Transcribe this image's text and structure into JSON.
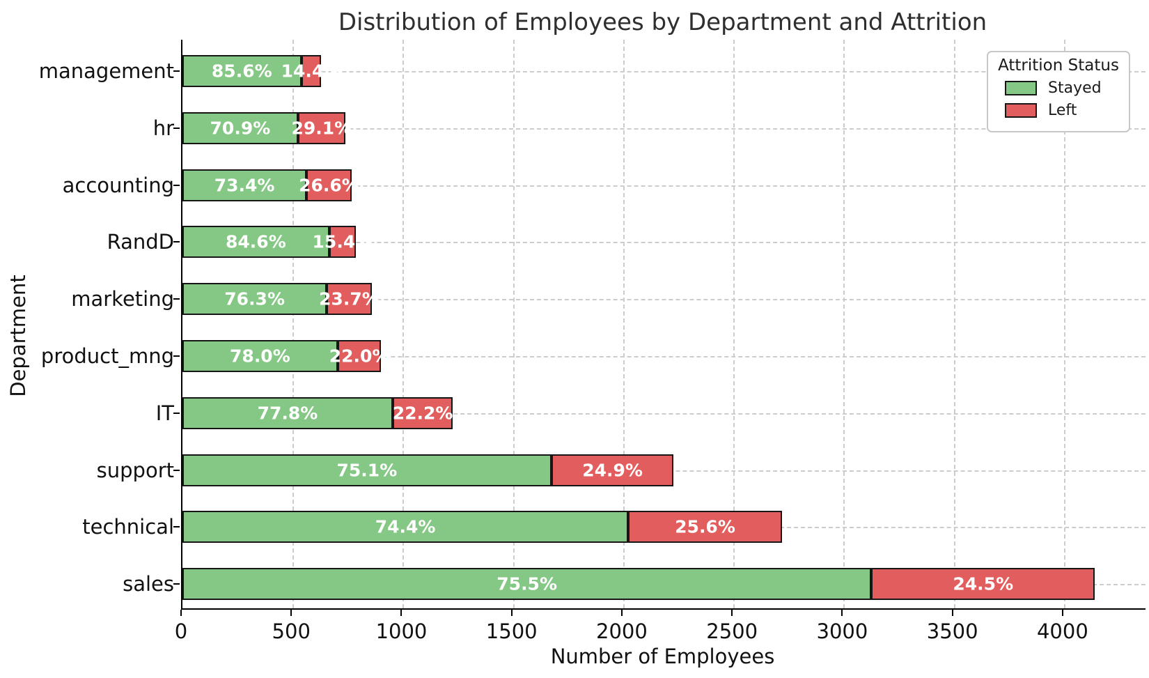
{
  "title": "Distribution of Employees by Department and Attrition",
  "xlabel": "Number of Employees",
  "ylabel": "Department",
  "legend": {
    "title": "Attrition Status",
    "items": [
      {
        "label": "Stayed",
        "color": "#85c785"
      },
      {
        "label": "Left",
        "color": "#e25d5d"
      }
    ]
  },
  "colors": {
    "stayed": "#85c785",
    "left": "#e25d5d",
    "bar_edge": "#161616",
    "grid": "#cccccc",
    "text": "#111111"
  },
  "chart_data": {
    "type": "bar",
    "orientation": "horizontal",
    "stacked": true,
    "title": "Distribution of Employees by Department and Attrition",
    "xlabel": "Number of Employees",
    "ylabel": "Department",
    "categories": [
      "management",
      "hr",
      "accounting",
      "RandD",
      "marketing",
      "product_mng",
      "IT",
      "support",
      "technical",
      "sales"
    ],
    "totals": [
      630,
      739,
      767,
      787,
      858,
      902,
      1227,
      2229,
      2720,
      4140
    ],
    "series": [
      {
        "name": "Stayed",
        "color": "#85c785",
        "values": [
          539,
          524,
          563,
          666,
          655,
          704,
          954,
          1674,
          2023,
          3126
        ],
        "pct_labels": [
          "85.6%",
          "70.9%",
          "73.4%",
          "84.6%",
          "76.3%",
          "78.0%",
          "77.8%",
          "75.1%",
          "74.4%",
          "75.5%"
        ]
      },
      {
        "name": "Left",
        "color": "#e25d5d",
        "values": [
          91,
          215,
          204,
          121,
          203,
          198,
          273,
          555,
          697,
          1014
        ],
        "pct_labels": [
          "14.4%",
          "29.1%",
          "26.6%",
          "15.4%",
          "23.7%",
          "22.0%",
          "22.2%",
          "24.9%",
          "25.6%",
          "24.5%"
        ]
      }
    ],
    "xlim": [
      0,
      4370
    ],
    "xticks": [
      0,
      500,
      1000,
      1500,
      2000,
      2500,
      3000,
      3500,
      4000
    ],
    "grid": true,
    "legend_position": "upper right"
  }
}
